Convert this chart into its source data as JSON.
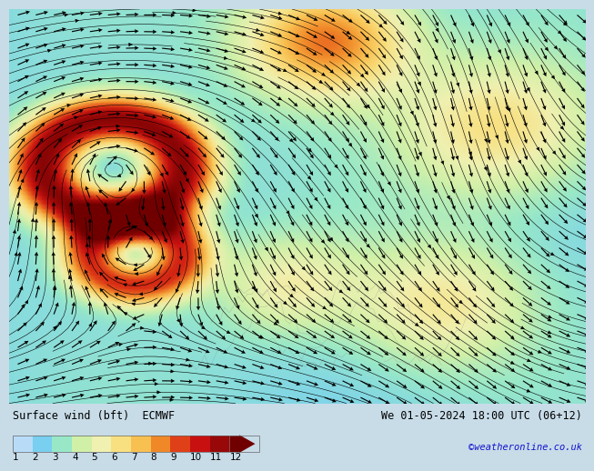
{
  "title_left": "Surface wind (bft)  ECMWF",
  "title_right": "We 01-05-2024 18:00 UTC (06+12)",
  "credit": "©weatheronline.co.uk",
  "colorbar_levels": [
    1,
    2,
    3,
    4,
    5,
    6,
    7,
    8,
    9,
    10,
    11,
    12
  ],
  "colorbar_colors": [
    "#b8dcf8",
    "#78cff0",
    "#98e8c8",
    "#d0f0a8",
    "#f0f0b0",
    "#f8e080",
    "#f8c050",
    "#f08828",
    "#e04018",
    "#c81010",
    "#980808",
    "#700000"
  ],
  "fig_width": 6.34,
  "fig_height": 4.9,
  "title_fontsize": 8.5,
  "credit_fontsize": 7.5,
  "credit_color": "#1010cc",
  "colorbar_label_fontsize": 7.5,
  "bottom_bar_color": "#d8d8d8",
  "map_ocean_color": "#a8cce0",
  "wind_arrow_color": "#000000"
}
